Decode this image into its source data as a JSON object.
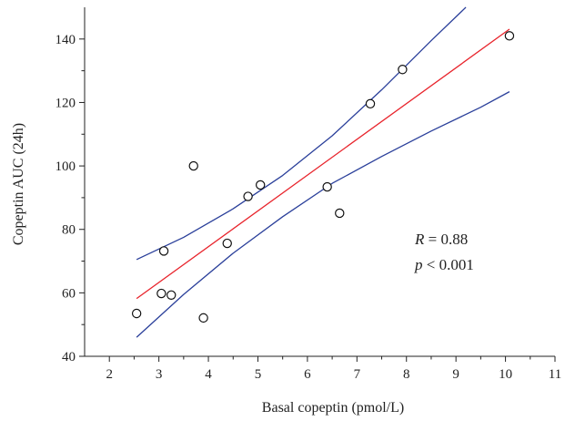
{
  "chart_data": {
    "type": "scatter",
    "xlabel": "Basal copeptin (pmol/L)",
    "ylabel": "Copeptin AUC (24h)",
    "xlim": [
      1.5,
      11
    ],
    "ylim": [
      40,
      150
    ],
    "x_ticks": [
      2,
      3,
      4,
      5,
      6,
      7,
      8,
      9,
      10,
      11
    ],
    "y_ticks": [
      40,
      60,
      80,
      100,
      120,
      140
    ],
    "grid": false,
    "points": [
      {
        "x": 2.55,
        "y": 53.5
      },
      {
        "x": 3.05,
        "y": 59.8
      },
      {
        "x": 3.1,
        "y": 73.2
      },
      {
        "x": 3.25,
        "y": 59.3
      },
      {
        "x": 3.7,
        "y": 100.0
      },
      {
        "x": 3.9,
        "y": 52.1
      },
      {
        "x": 4.38,
        "y": 75.6
      },
      {
        "x": 4.8,
        "y": 90.4
      },
      {
        "x": 5.05,
        "y": 94.0
      },
      {
        "x": 6.4,
        "y": 93.4
      },
      {
        "x": 6.65,
        "y": 85.1
      },
      {
        "x": 7.27,
        "y": 119.6
      },
      {
        "x": 7.92,
        "y": 130.4
      },
      {
        "x": 10.08,
        "y": 141.0
      }
    ],
    "fit_line": {
      "x": [
        2.55,
        10.08
      ],
      "y": [
        58.2,
        143.1
      ]
    },
    "confidence_band": {
      "upper": [
        [
          2.55,
          70.5
        ],
        [
          3.5,
          77.5
        ],
        [
          4.5,
          86.5
        ],
        [
          5.5,
          97.0
        ],
        [
          6.5,
          109.5
        ],
        [
          7.5,
          124.0
        ],
        [
          8.5,
          139.5
        ],
        [
          9.2,
          150.0
        ]
      ],
      "lower": [
        [
          2.55,
          46.0
        ],
        [
          3.5,
          59.5
        ],
        [
          4.5,
          72.5
        ],
        [
          5.5,
          84.0
        ],
        [
          6.5,
          94.5
        ],
        [
          7.5,
          103.0
        ],
        [
          8.5,
          111.0
        ],
        [
          9.5,
          118.5
        ],
        [
          10.08,
          123.4
        ]
      ]
    },
    "colors": {
      "fit": "#e8232b",
      "ci": "#2a3f9a",
      "axis": "#222222"
    },
    "annotation": {
      "r_symbol": "R",
      "r_value": " = 0.88",
      "p_symbol": "p",
      "p_value": " < 0.001"
    }
  }
}
